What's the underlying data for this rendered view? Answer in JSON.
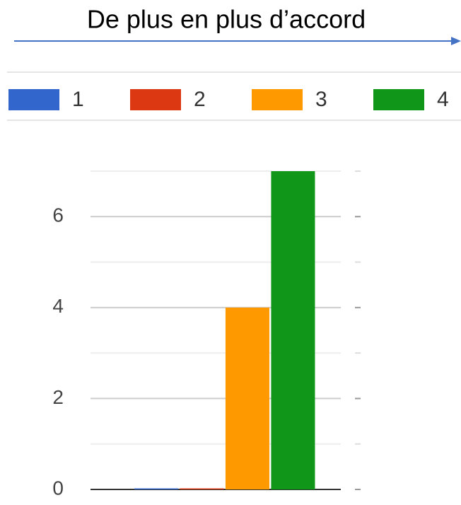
{
  "chart_data": {
    "type": "bar",
    "title": "De plus en plus d’accord",
    "categories": [
      null
    ],
    "series": [
      {
        "name": "1",
        "color": "#3366cc",
        "values": [
          0
        ]
      },
      {
        "name": "2",
        "color": "#dc3912",
        "values": [
          0
        ]
      },
      {
        "name": "3",
        "color": "#ff9900",
        "values": [
          4
        ]
      },
      {
        "name": "4",
        "color": "#109618",
        "values": [
          7
        ]
      }
    ],
    "ylim": [
      0,
      7
    ],
    "yticks": [
      0,
      2,
      4,
      6
    ],
    "minor_yticks": [
      1,
      3,
      5,
      7
    ],
    "grid": true,
    "legend": "top"
  }
}
